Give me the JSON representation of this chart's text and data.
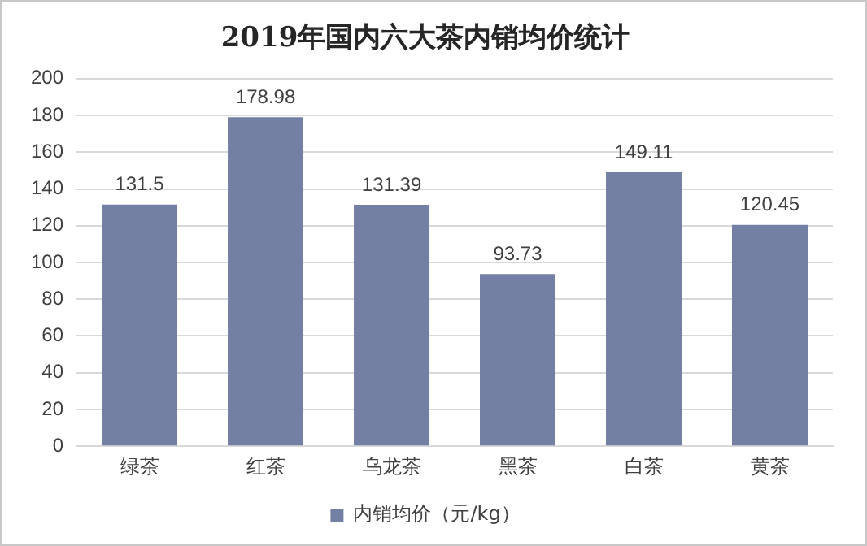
{
  "chart_data": {
    "type": "bar",
    "title": "2019年国内六大茶内销均价统计",
    "categories": [
      "绿茶",
      "红茶",
      "乌龙茶",
      "黑茶",
      "白茶",
      "黄茶"
    ],
    "series": [
      {
        "name": "内销均价（元/kg）",
        "color": "#737fa3",
        "values": [
          131.5,
          178.98,
          131.39,
          93.73,
          149.11,
          120.45
        ]
      }
    ],
    "ylim": [
      0,
      200
    ],
    "yticks": [
      0,
      20,
      40,
      60,
      80,
      100,
      120,
      140,
      160,
      180,
      200
    ],
    "grid": "y",
    "legend": "bottom",
    "data_labels": true
  }
}
